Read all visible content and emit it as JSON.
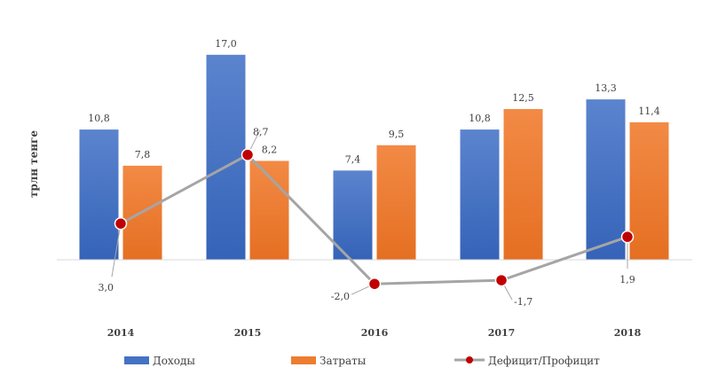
{
  "colors": {
    "income": "#4472C4",
    "expense": "#ED7D31",
    "balance_line": "#A5A5A5",
    "balance_marker": "#C00000",
    "axis": "#D9D9D9",
    "label_line": "#A6A6A6"
  },
  "chart_data": {
    "type": "bar",
    "title": "",
    "xlabel": "",
    "ylabel": "трлн тенге",
    "categories": [
      "2014",
      "2015",
      "2016",
      "2017",
      "2018"
    ],
    "ylim": [
      -5,
      18
    ],
    "grid": false,
    "legend_position": "bottom",
    "series": [
      {
        "name": "Доходы",
        "type": "bar",
        "values": [
          10.8,
          17.0,
          7.4,
          10.8,
          13.3
        ],
        "labels": [
          "10,8",
          "17,0",
          "7,4",
          "10,8",
          "13,3"
        ]
      },
      {
        "name": "Затраты",
        "type": "bar",
        "values": [
          7.8,
          8.2,
          9.5,
          12.5,
          11.4
        ],
        "labels": [
          "7,8",
          "8,2",
          "9,5",
          "12,5",
          "11,4"
        ]
      },
      {
        "name": "Дефицит/Профицит",
        "type": "line",
        "values": [
          3.0,
          8.7,
          -2.0,
          -1.7,
          1.9
        ],
        "labels": [
          "3,0",
          "8,7",
          "-2,0",
          "-1,7",
          "1,9"
        ]
      }
    ]
  }
}
